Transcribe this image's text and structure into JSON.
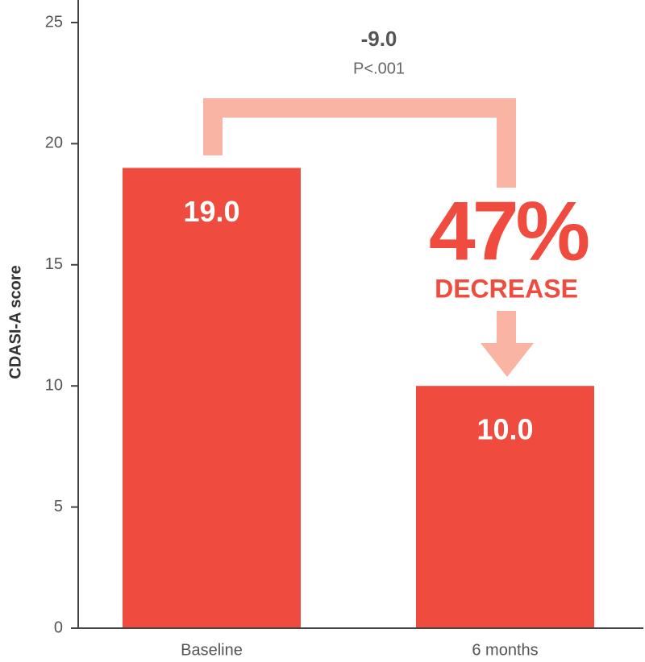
{
  "chart_data": {
    "type": "bar",
    "y_label": "CDASI-A score",
    "categories": [
      "Baseline",
      "6 months"
    ],
    "values": [
      19,
      10
    ],
    "value_labels": [
      "19.0",
      "10.0"
    ],
    "color": "#ef4b3f",
    "ylim": [
      0,
      25
    ],
    "yticks": [
      0,
      5,
      10,
      15,
      20,
      25
    ],
    "annotations": {
      "difference": "-9.0",
      "p_value": "P<.001",
      "percent": "47%",
      "percent_caption": "DECREASE"
    }
  }
}
